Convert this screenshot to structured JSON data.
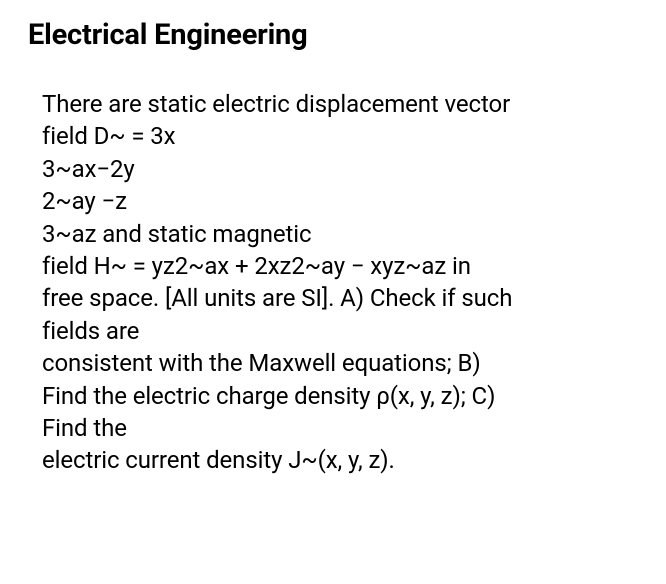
{
  "heading": "Electrical Engineering",
  "lines": [
    "There are static electric displacement vector",
    "field D~ = 3x",
    "3~ax−2y",
    "2~ay −z",
    "3~az and static magnetic",
    "field H~ = yz2~ax + 2xz2~ay − xyz~az in",
    "free space. [All units are SI]. A) Check if such",
    "fields are",
    "consistent with the Maxwell equations; B)",
    "Find the electric charge density ρ(x, y, z); C)",
    "Find the",
    "electric current density J~(x, y, z)."
  ]
}
